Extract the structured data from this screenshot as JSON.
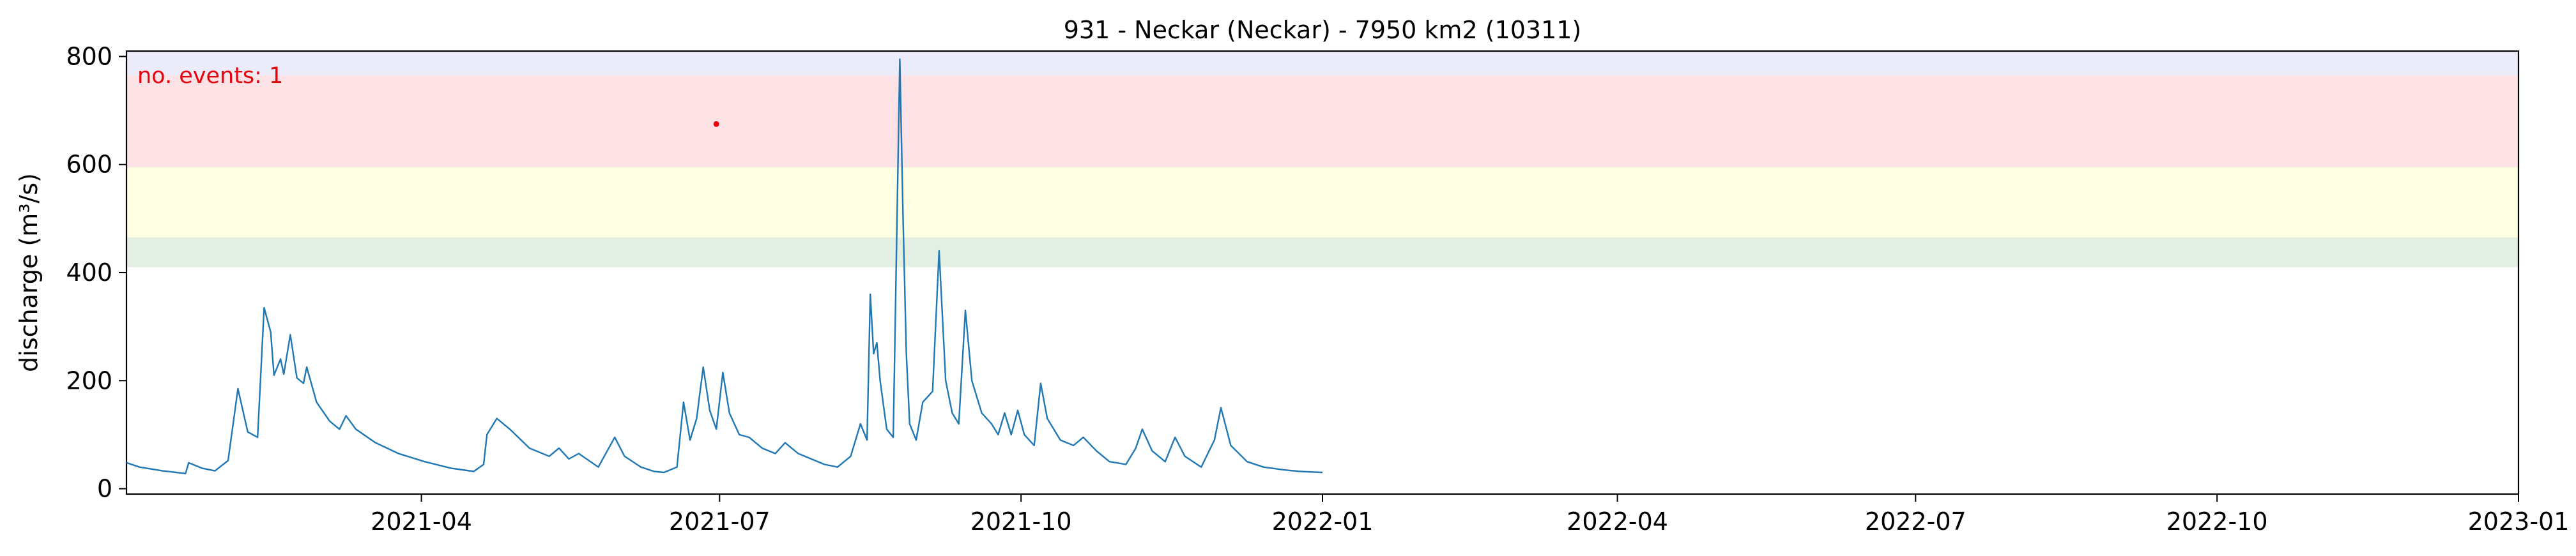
{
  "chart_data": {
    "type": "line",
    "title": "931 - Neckar (Neckar) - 7950 km2 (10311)",
    "ylabel": "discharge (m³/s)",
    "xlabel": "",
    "xlim": [
      "2021-01-01",
      "2023-01-01"
    ],
    "ylim": [
      -10,
      810
    ],
    "x_ticks": [
      "2021-04",
      "2021-07",
      "2021-10",
      "2022-01",
      "2022-04",
      "2022-07",
      "2022-10",
      "2023-01"
    ],
    "y_ticks": [
      0,
      200,
      400,
      600,
      800
    ],
    "grid": false,
    "line_color": "#1f77b4",
    "annotation": {
      "text": "no. events: 1",
      "color": "#e8000b"
    },
    "threshold_bands": [
      {
        "from": 410,
        "to": 465,
        "color": "#e3efe3"
      },
      {
        "from": 465,
        "to": 595,
        "color": "#fefee3"
      },
      {
        "from": 595,
        "to": 765,
        "color": "#fde2e6"
      },
      {
        "from": 765,
        "to": 810,
        "color": "#ecebfa"
      }
    ],
    "events": [
      {
        "date": "2021-06-30",
        "value": 675,
        "color": "#e8000b"
      }
    ],
    "series": [
      {
        "points": [
          [
            "2021-01-01",
            48
          ],
          [
            "2021-01-05",
            40
          ],
          [
            "2021-01-12",
            33
          ],
          [
            "2021-01-19",
            28
          ],
          [
            "2021-01-20",
            48
          ],
          [
            "2021-01-24",
            38
          ],
          [
            "2021-01-28",
            33
          ],
          [
            "2021-02-01",
            52
          ],
          [
            "2021-02-04",
            185
          ],
          [
            "2021-02-07",
            105
          ],
          [
            "2021-02-10",
            95
          ],
          [
            "2021-02-12",
            335
          ],
          [
            "2021-02-14",
            290
          ],
          [
            "2021-02-15",
            210
          ],
          [
            "2021-02-17",
            240
          ],
          [
            "2021-02-18",
            212
          ],
          [
            "2021-02-20",
            285
          ],
          [
            "2021-02-22",
            205
          ],
          [
            "2021-02-24",
            195
          ],
          [
            "2021-02-25",
            225
          ],
          [
            "2021-02-28",
            160
          ],
          [
            "2021-03-04",
            125
          ],
          [
            "2021-03-07",
            110
          ],
          [
            "2021-03-09",
            135
          ],
          [
            "2021-03-12",
            110
          ],
          [
            "2021-03-18",
            85
          ],
          [
            "2021-03-25",
            65
          ],
          [
            "2021-04-02",
            50
          ],
          [
            "2021-04-10",
            38
          ],
          [
            "2021-04-17",
            32
          ],
          [
            "2021-04-20",
            45
          ],
          [
            "2021-04-21",
            100
          ],
          [
            "2021-04-24",
            130
          ],
          [
            "2021-04-28",
            110
          ],
          [
            "2021-05-04",
            75
          ],
          [
            "2021-05-10",
            60
          ],
          [
            "2021-05-13",
            75
          ],
          [
            "2021-05-16",
            55
          ],
          [
            "2021-05-19",
            65
          ],
          [
            "2021-05-25",
            40
          ],
          [
            "2021-05-30",
            95
          ],
          [
            "2021-06-02",
            60
          ],
          [
            "2021-06-07",
            40
          ],
          [
            "2021-06-11",
            32
          ],
          [
            "2021-06-14",
            30
          ],
          [
            "2021-06-18",
            40
          ],
          [
            "2021-06-20",
            160
          ],
          [
            "2021-06-22",
            90
          ],
          [
            "2021-06-24",
            130
          ],
          [
            "2021-06-26",
            225
          ],
          [
            "2021-06-28",
            145
          ],
          [
            "2021-06-30",
            110
          ],
          [
            "2021-07-02",
            215
          ],
          [
            "2021-07-04",
            140
          ],
          [
            "2021-07-07",
            100
          ],
          [
            "2021-07-10",
            95
          ],
          [
            "2021-07-14",
            75
          ],
          [
            "2021-07-18",
            65
          ],
          [
            "2021-07-21",
            85
          ],
          [
            "2021-07-25",
            65
          ],
          [
            "2021-07-29",
            55
          ],
          [
            "2021-08-02",
            45
          ],
          [
            "2021-08-06",
            40
          ],
          [
            "2021-08-10",
            60
          ],
          [
            "2021-08-13",
            120
          ],
          [
            "2021-08-15",
            90
          ],
          [
            "2021-08-16",
            360
          ],
          [
            "2021-08-17",
            250
          ],
          [
            "2021-08-18",
            270
          ],
          [
            "2021-08-19",
            200
          ],
          [
            "2021-08-21",
            110
          ],
          [
            "2021-08-23",
            95
          ],
          [
            "2021-08-25",
            795
          ],
          [
            "2021-08-26",
            500
          ],
          [
            "2021-08-27",
            250
          ],
          [
            "2021-08-28",
            120
          ],
          [
            "2021-08-30",
            90
          ],
          [
            "2021-09-01",
            160
          ],
          [
            "2021-09-04",
            180
          ],
          [
            "2021-09-06",
            440
          ],
          [
            "2021-09-08",
            200
          ],
          [
            "2021-09-10",
            140
          ],
          [
            "2021-09-12",
            120
          ],
          [
            "2021-09-14",
            330
          ],
          [
            "2021-09-16",
            200
          ],
          [
            "2021-09-19",
            140
          ],
          [
            "2021-09-22",
            120
          ],
          [
            "2021-09-24",
            100
          ],
          [
            "2021-09-26",
            140
          ],
          [
            "2021-09-28",
            100
          ],
          [
            "2021-09-30",
            145
          ],
          [
            "2021-10-02",
            100
          ],
          [
            "2021-10-05",
            80
          ],
          [
            "2021-10-07",
            195
          ],
          [
            "2021-10-09",
            130
          ],
          [
            "2021-10-13",
            90
          ],
          [
            "2021-10-17",
            80
          ],
          [
            "2021-10-20",
            95
          ],
          [
            "2021-10-24",
            70
          ],
          [
            "2021-10-28",
            50
          ],
          [
            "2021-11-02",
            45
          ],
          [
            "2021-11-05",
            75
          ],
          [
            "2021-11-07",
            110
          ],
          [
            "2021-11-10",
            70
          ],
          [
            "2021-11-14",
            50
          ],
          [
            "2021-11-17",
            95
          ],
          [
            "2021-11-20",
            60
          ],
          [
            "2021-11-25",
            40
          ],
          [
            "2021-11-29",
            90
          ],
          [
            "2021-12-01",
            150
          ],
          [
            "2021-12-04",
            80
          ],
          [
            "2021-12-09",
            50
          ],
          [
            "2021-12-14",
            40
          ],
          [
            "2021-12-20",
            35
          ],
          [
            "2021-12-25",
            32
          ],
          [
            "2022-01-01",
            30
          ]
        ]
      }
    ]
  }
}
